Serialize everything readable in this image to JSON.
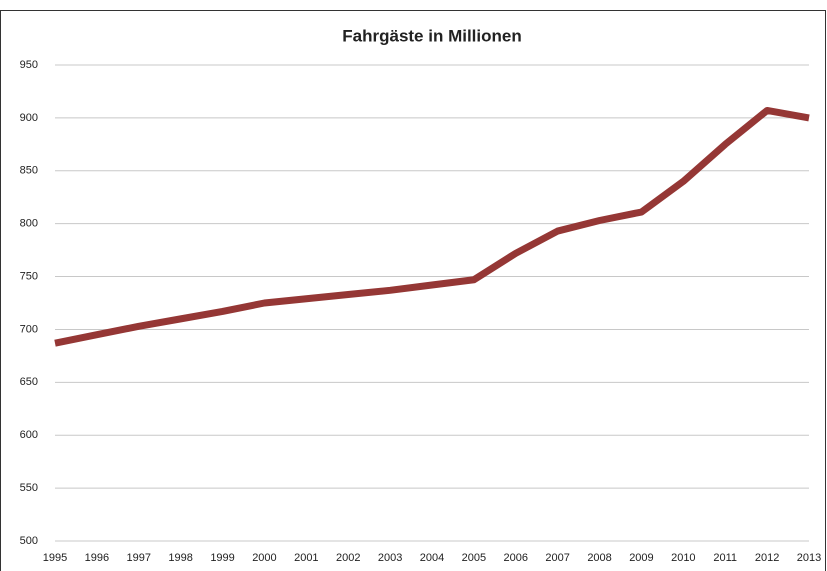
{
  "chart_data": {
    "type": "line",
    "title": "Fahrgäste in Millionen",
    "categories": [
      "1995",
      "1996",
      "1997",
      "1998",
      "1999",
      "2000",
      "2001",
      "2002",
      "2003",
      "2004",
      "2005",
      "2006",
      "2007",
      "2008",
      "2009",
      "2010",
      "2011",
      "2012",
      "2013"
    ],
    "series": [
      {
        "name": "Fahrgäste",
        "color": "#953735",
        "values": [
          687,
          695,
          703,
          710,
          717,
          725,
          729,
          733,
          737,
          742,
          747,
          772,
          793,
          803,
          811,
          840,
          875,
          907,
          900
        ]
      }
    ],
    "ylim": [
      500,
      950
    ],
    "yticks": [
      500,
      550,
      600,
      650,
      700,
      750,
      800,
      850,
      900,
      950
    ],
    "grid": true,
    "legend": false
  }
}
